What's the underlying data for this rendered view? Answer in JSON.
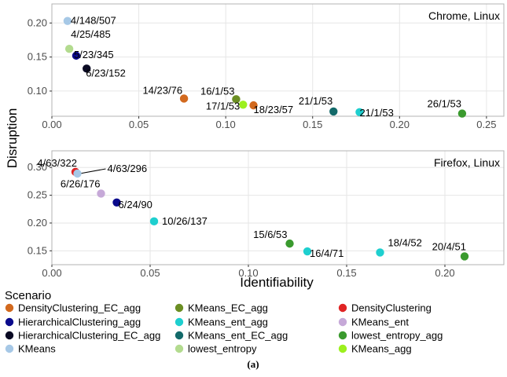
{
  "figure": {
    "ylabel": "Disruption",
    "xlabel": "Identifiability",
    "legend_title": "Scenario",
    "caption": "(a)"
  },
  "chart_data": [
    {
      "type": "scatter",
      "panel_title": "Chrome, Linux",
      "xlim": [
        0,
        0.26
      ],
      "ylim": [
        0.063,
        0.228
      ],
      "xticks": [
        0.0,
        0.05,
        0.1,
        0.15,
        0.2,
        0.25
      ],
      "xtick_labels": [
        "0.00",
        "0.05",
        "0.10",
        "0.15",
        "0.20",
        "0.25"
      ],
      "yticks": [
        0.1,
        0.15,
        0.2
      ],
      "ytick_labels": [
        "0.10",
        "0.15",
        "0.20"
      ],
      "grid": true,
      "points": [
        {
          "scenario": "KMeans",
          "x": 0.009,
          "y": 0.203,
          "label": "4/148/507"
        },
        {
          "scenario": "lowest_entropy",
          "x": 0.01,
          "y": 0.162,
          "label": "4/25/485"
        },
        {
          "scenario": "HierarchicalClustering_agg",
          "x": 0.014,
          "y": 0.152,
          "label": "5/23/345"
        },
        {
          "scenario": "HierarchicalClustering_EC_agg",
          "x": 0.02,
          "y": 0.133,
          "label": "6/23/152"
        },
        {
          "scenario": "DensityClustering_EC_agg",
          "x": 0.076,
          "y": 0.089,
          "label": "14/23/76"
        },
        {
          "scenario": "KMeans_EC_agg",
          "x": 0.106,
          "y": 0.088,
          "label": "16/1/53"
        },
        {
          "scenario": "KMeans_agg",
          "x": 0.11,
          "y": 0.08,
          "label": "17/1/53"
        },
        {
          "scenario": "DensityClustering_EC_agg",
          "x": 0.116,
          "y": 0.079,
          "label": "18/23/57"
        },
        {
          "scenario": "KMeans_ent_EC_agg",
          "x": 0.162,
          "y": 0.07,
          "label": "21/1/53"
        },
        {
          "scenario": "KMeans_ent_agg",
          "x": 0.177,
          "y": 0.069,
          "label": "21/1/53"
        },
        {
          "scenario": "lowest_entropy_agg",
          "x": 0.236,
          "y": 0.067,
          "label": "26/1/53"
        }
      ]
    },
    {
      "type": "scatter",
      "panel_title": "Firefox, Linux",
      "xlim": [
        0,
        0.23
      ],
      "ylim": [
        0.125,
        0.33
      ],
      "xticks": [
        0.0,
        0.05,
        0.1,
        0.15,
        0.2
      ],
      "xtick_labels": [
        "0.00",
        "0.05",
        "0.10",
        "0.15",
        "0.20"
      ],
      "yticks": [
        0.15,
        0.2,
        0.25,
        0.3
      ],
      "ytick_labels": [
        "0.15",
        "0.20",
        "0.25",
        "0.30"
      ],
      "grid": true,
      "points": [
        {
          "scenario": "DensityClustering",
          "x": 0.012,
          "y": 0.292,
          "label": "4/63/322"
        },
        {
          "scenario": "KMeans",
          "x": 0.013,
          "y": 0.289,
          "label": "4/63/296"
        },
        {
          "scenario": "KMeans_ent",
          "x": 0.025,
          "y": 0.253,
          "label": "6/26/176"
        },
        {
          "scenario": "HierarchicalClustering_agg",
          "x": 0.033,
          "y": 0.237,
          "label": "6/24/90"
        },
        {
          "scenario": "KMeans_ent_agg",
          "x": 0.052,
          "y": 0.203,
          "label": "10/26/137"
        },
        {
          "scenario": "lowest_entropy_agg",
          "x": 0.121,
          "y": 0.163,
          "label": "15/6/53"
        },
        {
          "scenario": "KMeans_ent_agg",
          "x": 0.13,
          "y": 0.149,
          "label": "16/4/71"
        },
        {
          "scenario": "KMeans_ent_agg",
          "x": 0.167,
          "y": 0.147,
          "label": "18/4/52"
        },
        {
          "scenario": "lowest_entropy_agg",
          "x": 0.21,
          "y": 0.14,
          "label": "20/4/51"
        }
      ]
    }
  ],
  "legend": [
    {
      "name": "DensityClustering_EC_agg",
      "color": "#d2691e"
    },
    {
      "name": "HierarchicalClustering_agg",
      "color": "#0a0a8c"
    },
    {
      "name": "HierarchicalClustering_EC_agg",
      "color": "#0a0a23"
    },
    {
      "name": "KMeans",
      "color": "#a6c8e6"
    },
    {
      "name": "KMeans_EC_agg",
      "color": "#6b8e23"
    },
    {
      "name": "KMeans_ent_agg",
      "color": "#1ecfcf"
    },
    {
      "name": "KMeans_ent_EC_agg",
      "color": "#136a6a"
    },
    {
      "name": "lowest_entropy",
      "color": "#b3db8f"
    },
    {
      "name": "DensityClustering",
      "color": "#e02424"
    },
    {
      "name": "KMeans_ent",
      "color": "#c6a9d8"
    },
    {
      "name": "lowest_entropy_agg",
      "color": "#3a9a2e"
    },
    {
      "name": "KMeans_agg",
      "color": "#9cf01e"
    }
  ]
}
